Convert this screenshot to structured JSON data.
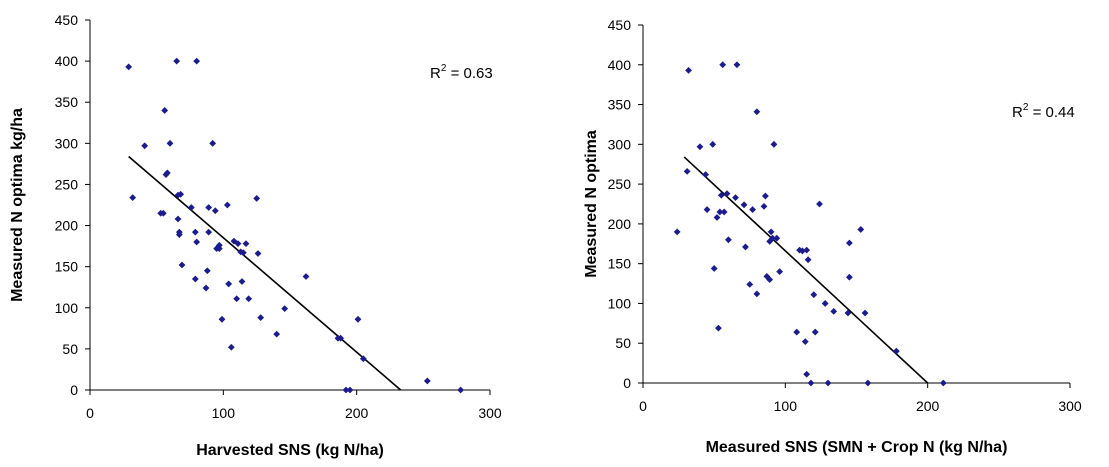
{
  "chart_data": [
    {
      "type": "scatter",
      "xlabel": "Harvested SNS (kg N/ha)",
      "ylabel": "Measured N optima kg/ha",
      "xlim": [
        0,
        300
      ],
      "ylim": [
        0,
        450
      ],
      "xticks": [
        0,
        100,
        200,
        300
      ],
      "yticks": [
        0,
        50,
        100,
        150,
        200,
        250,
        300,
        350,
        400,
        450
      ],
      "grid": false,
      "marker_color": "#1c1c8c",
      "trendline": {
        "x": [
          29,
          233
        ],
        "y": [
          284,
          0
        ]
      },
      "r2_label": {
        "prefix": "R",
        "superscript": "2",
        "value": " = 0.63"
      },
      "series": [
        {
          "x": [
            29,
            32,
            41,
            53,
            55,
            56,
            57,
            58,
            60,
            65,
            66,
            66,
            67,
            67,
            68,
            69,
            76,
            79,
            79,
            80,
            80,
            87,
            88,
            89,
            89,
            92,
            94,
            95,
            97,
            97,
            99,
            103,
            104,
            106,
            108,
            110,
            111,
            113,
            114,
            115,
            117,
            119,
            125,
            126,
            128,
            140,
            146,
            162,
            186,
            188,
            192,
            195,
            201,
            205,
            253,
            278
          ],
          "y": [
            393,
            234,
            297,
            215,
            215,
            340,
            262,
            264,
            300,
            400,
            237,
            208,
            192,
            189,
            238,
            152,
            222,
            192,
            135,
            180,
            400,
            124,
            145,
            222,
            192,
            300,
            218,
            172,
            172,
            176,
            86,
            225,
            129,
            52,
            181,
            111,
            178,
            168,
            132,
            167,
            178,
            111,
            233,
            166,
            88,
            68,
            99,
            138,
            63,
            63,
            0,
            0,
            86,
            38,
            11,
            0
          ]
        }
      ]
    },
    {
      "type": "scatter",
      "xlabel": "Measured SNS (SMN + Crop N (kg N/ha)",
      "ylabel": "Measured N optima",
      "xlim": [
        0,
        300
      ],
      "ylim": [
        0,
        450
      ],
      "xticks": [
        0,
        100,
        200,
        300
      ],
      "yticks": [
        0,
        50,
        100,
        150,
        200,
        250,
        300,
        350,
        400,
        450
      ],
      "grid": false,
      "marker_color": "#1c1c8c",
      "trendline": {
        "x": [
          29,
          200
        ],
        "y": [
          284,
          0
        ]
      },
      "r2_label": {
        "prefix": "R",
        "superscript": "2",
        "value": " = 0.44"
      },
      "series": [
        {
          "x": [
            24,
            31,
            32,
            40,
            44,
            45,
            49,
            50,
            52,
            53,
            54,
            55,
            56,
            57,
            59,
            60,
            65,
            66,
            71,
            72,
            75,
            77,
            80,
            80,
            85,
            86,
            87,
            89,
            89,
            90,
            91,
            92,
            94,
            96,
            108,
            110,
            112,
            114,
            115,
            115,
            116,
            118,
            120,
            121,
            124,
            128,
            130,
            134,
            144,
            145,
            145,
            153,
            156,
            158,
            178,
            211
          ],
          "y": [
            190,
            266,
            393,
            297,
            262,
            218,
            300,
            144,
            208,
            69,
            215,
            236,
            400,
            215,
            238,
            180,
            233,
            400,
            224,
            171,
            124,
            218,
            341,
            112,
            222,
            235,
            134,
            130,
            178,
            190,
            182,
            300,
            182,
            140,
            64,
            167,
            166,
            52,
            167,
            11,
            155,
            0,
            111,
            64,
            225,
            100,
            0,
            90,
            88,
            176,
            133,
            193,
            88,
            0,
            40,
            0
          ]
        }
      ]
    }
  ]
}
